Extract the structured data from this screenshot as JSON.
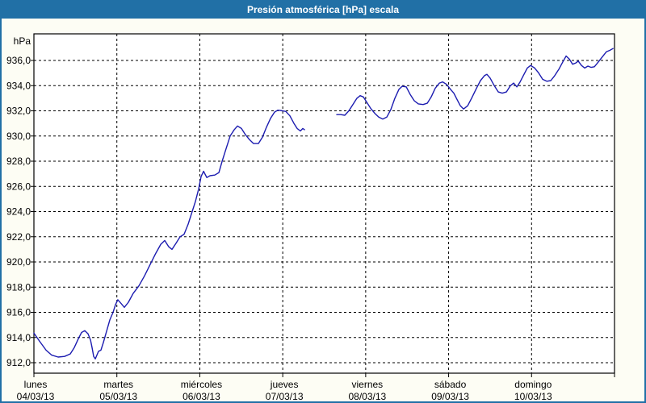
{
  "window": {
    "title": "Presión atmosférica [hPa] escala"
  },
  "chart_data": {
    "type": "line",
    "title": "Presión atmosférica [hPa] escala",
    "unit_label": "hPa",
    "ylabel": "hPa",
    "xlabel": "",
    "ylim": [
      911.2,
      938.1
    ],
    "ytick_step": 2,
    "grid": "dashed",
    "legend": "none",
    "line_color": "#1c1cb0",
    "axis_color": "#000000",
    "titlebar_color": "#2170a6",
    "background_color": "#fdfdf4",
    "yticks": [
      {
        "value": 936,
        "label": "936,0"
      },
      {
        "value": 934,
        "label": "934,0"
      },
      {
        "value": 932,
        "label": "932,0"
      },
      {
        "value": 930,
        "label": "930,0"
      },
      {
        "value": 928,
        "label": "928,0"
      },
      {
        "value": 926,
        "label": "926,0"
      },
      {
        "value": 924,
        "label": "924,0"
      },
      {
        "value": 922,
        "label": "922,0"
      },
      {
        "value": 920,
        "label": "920,0"
      },
      {
        "value": 918,
        "label": "918,0"
      },
      {
        "value": 916,
        "label": "916,0"
      },
      {
        "value": 914,
        "label": "914,0"
      },
      {
        "value": 912,
        "label": "912,0"
      }
    ],
    "days": [
      {
        "name": "lunes",
        "date": "04/03/13"
      },
      {
        "name": "martes",
        "date": "05/03/13"
      },
      {
        "name": "miércoles",
        "date": "06/03/13"
      },
      {
        "name": "jueves",
        "date": "07/03/13"
      },
      {
        "name": "viernes",
        "date": "08/03/13"
      },
      {
        "name": "sábado",
        "date": "09/03/13"
      },
      {
        "name": "domingo",
        "date": "10/03/13"
      }
    ],
    "series": [
      {
        "name": "Presión atmosférica",
        "units": "hPa",
        "x_units": "days from Monday 04/03/13 00:00",
        "segments": [
          [
            [
              0.0,
              914.35
            ],
            [
              0.068,
              913.7
            ],
            [
              0.146,
              913.0
            ],
            [
              0.214,
              912.6
            ],
            [
              0.292,
              912.45
            ],
            [
              0.37,
              912.5
            ],
            [
              0.438,
              912.7
            ],
            [
              0.487,
              913.2
            ],
            [
              0.535,
              913.9
            ],
            [
              0.574,
              914.4
            ],
            [
              0.613,
              914.55
            ],
            [
              0.652,
              914.3
            ],
            [
              0.682,
              913.8
            ],
            [
              0.701,
              913.2
            ],
            [
              0.72,
              912.5
            ],
            [
              0.74,
              912.3
            ],
            [
              0.779,
              912.9
            ],
            [
              0.808,
              913.0
            ],
            [
              0.837,
              913.6
            ],
            [
              0.876,
              914.5
            ],
            [
              0.915,
              915.4
            ],
            [
              0.954,
              916.0
            ],
            [
              0.983,
              916.6
            ],
            [
              1.012,
              917.0
            ],
            [
              1.051,
              916.7
            ],
            [
              1.09,
              916.4
            ],
            [
              1.139,
              916.8
            ],
            [
              1.197,
              917.5
            ],
            [
              1.266,
              918.1
            ],
            [
              1.334,
              918.9
            ],
            [
              1.402,
              919.8
            ],
            [
              1.47,
              920.7
            ],
            [
              1.529,
              921.4
            ],
            [
              1.577,
              921.7
            ],
            [
              1.626,
              921.2
            ],
            [
              1.665,
              921.0
            ],
            [
              1.714,
              921.5
            ],
            [
              1.762,
              922.0
            ],
            [
              1.811,
              922.2
            ],
            [
              1.86,
              923.0
            ],
            [
              1.908,
              924.0
            ],
            [
              1.947,
              924.8
            ],
            [
              1.986,
              925.8
            ],
            [
              2.016,
              926.8
            ],
            [
              2.045,
              927.2
            ],
            [
              2.084,
              926.7
            ],
            [
              2.123,
              926.85
            ],
            [
              2.181,
              926.9
            ],
            [
              2.23,
              927.1
            ],
            [
              2.269,
              928.0
            ],
            [
              2.317,
              929.0
            ],
            [
              2.366,
              930.0
            ],
            [
              2.415,
              930.5
            ],
            [
              2.454,
              930.8
            ],
            [
              2.502,
              930.6
            ],
            [
              2.551,
              930.1
            ],
            [
              2.6,
              929.7
            ],
            [
              2.648,
              929.4
            ],
            [
              2.707,
              929.4
            ],
            [
              2.755,
              929.9
            ],
            [
              2.804,
              930.7
            ],
            [
              2.853,
              931.4
            ],
            [
              2.901,
              931.9
            ],
            [
              2.94,
              932.05
            ],
            [
              2.999,
              932.0
            ],
            [
              3.038,
              931.95
            ],
            [
              3.086,
              931.6
            ],
            [
              3.135,
              931.0
            ],
            [
              3.174,
              930.6
            ],
            [
              3.213,
              930.4
            ],
            [
              3.242,
              930.6
            ],
            [
              3.262,
              930.5
            ]
          ],
          [
            [
              3.651,
              931.7
            ],
            [
              3.7,
              931.7
            ],
            [
              3.748,
              931.65
            ],
            [
              3.797,
              932.0
            ],
            [
              3.846,
              932.5
            ],
            [
              3.894,
              933.0
            ],
            [
              3.933,
              933.2
            ],
            [
              3.972,
              933.1
            ],
            [
              4.011,
              932.7
            ],
            [
              4.06,
              932.2
            ],
            [
              4.109,
              931.8
            ],
            [
              4.157,
              931.5
            ],
            [
              4.206,
              931.35
            ],
            [
              4.255,
              931.5
            ],
            [
              4.303,
              932.1
            ],
            [
              4.352,
              933.0
            ],
            [
              4.401,
              933.7
            ],
            [
              4.44,
              933.95
            ],
            [
              4.489,
              933.9
            ],
            [
              4.537,
              933.3
            ],
            [
              4.586,
              932.8
            ],
            [
              4.635,
              932.55
            ],
            [
              4.693,
              932.5
            ],
            [
              4.742,
              932.6
            ],
            [
              4.79,
              933.1
            ],
            [
              4.839,
              933.8
            ],
            [
              4.888,
              934.2
            ],
            [
              4.927,
              934.3
            ],
            [
              4.976,
              934.1
            ],
            [
              5.024,
              933.7
            ],
            [
              5.063,
              933.4
            ],
            [
              5.102,
              932.9
            ],
            [
              5.141,
              932.4
            ],
            [
              5.18,
              932.15
            ],
            [
              5.229,
              932.4
            ],
            [
              5.277,
              933.0
            ],
            [
              5.336,
              933.8
            ],
            [
              5.384,
              934.4
            ],
            [
              5.433,
              934.8
            ],
            [
              5.462,
              934.9
            ],
            [
              5.501,
              934.6
            ],
            [
              5.55,
              934.0
            ],
            [
              5.599,
              933.5
            ],
            [
              5.647,
              933.4
            ],
            [
              5.696,
              933.5
            ],
            [
              5.745,
              934.0
            ],
            [
              5.784,
              934.2
            ],
            [
              5.823,
              933.9
            ],
            [
              5.862,
              934.3
            ],
            [
              5.901,
              934.8
            ],
            [
              5.949,
              935.4
            ],
            [
              5.988,
              935.6
            ],
            [
              6.037,
              935.4
            ],
            [
              6.086,
              935.0
            ],
            [
              6.134,
              934.5
            ],
            [
              6.183,
              934.35
            ],
            [
              6.232,
              934.4
            ],
            [
              6.28,
              934.8
            ],
            [
              6.329,
              935.3
            ],
            [
              6.378,
              935.9
            ],
            [
              6.417,
              936.35
            ],
            [
              6.456,
              936.1
            ],
            [
              6.495,
              935.7
            ],
            [
              6.534,
              935.8
            ],
            [
              6.563,
              935.95
            ],
            [
              6.602,
              935.6
            ],
            [
              6.641,
              935.4
            ],
            [
              6.68,
              935.55
            ],
            [
              6.719,
              935.45
            ],
            [
              6.758,
              935.5
            ],
            [
              6.807,
              935.9
            ],
            [
              6.855,
              936.3
            ],
            [
              6.904,
              936.7
            ],
            [
              6.943,
              936.8
            ],
            [
              6.982,
              936.95
            ]
          ]
        ]
      }
    ]
  }
}
